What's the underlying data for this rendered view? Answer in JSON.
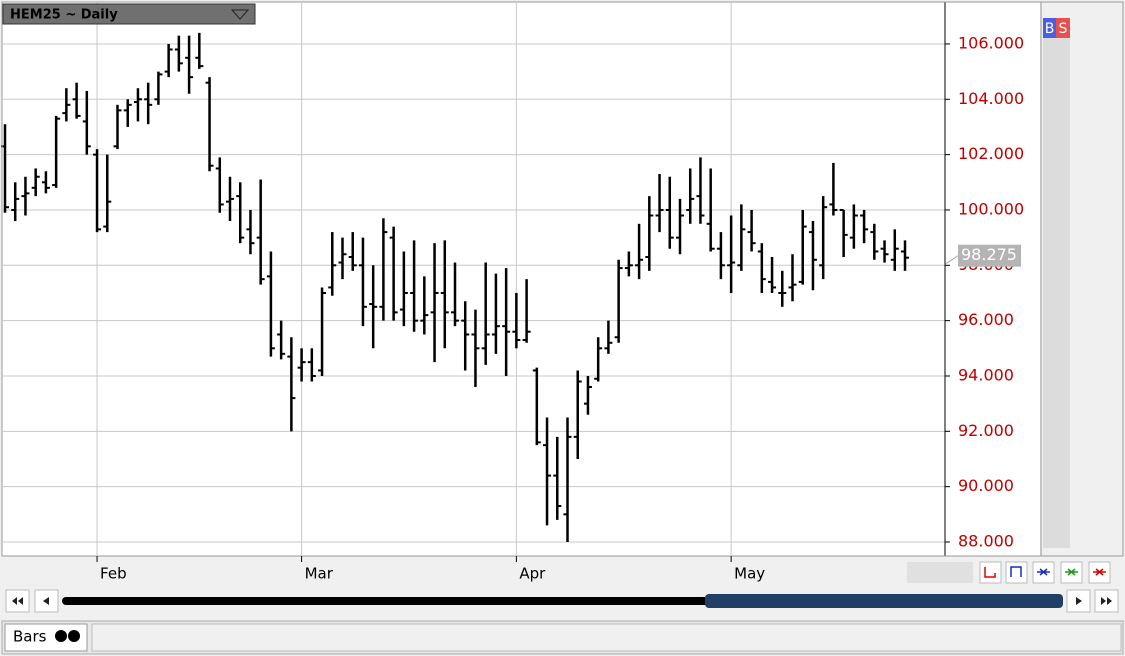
{
  "chart_data": {
    "type": "ohlc",
    "categories": [
      null,
      null,
      null,
      null,
      null,
      null,
      null,
      null,
      null,
      "Feb",
      null,
      null,
      null,
      null,
      null,
      null,
      null,
      null,
      null,
      null,
      null,
      null,
      null,
      null,
      null,
      null,
      null,
      null,
      null,
      "Mar",
      null,
      null,
      null,
      null,
      null,
      null,
      null,
      null,
      null,
      null,
      null,
      null,
      null,
      null,
      null,
      null,
      null,
      null,
      null,
      null,
      "Apr",
      null,
      null,
      null,
      null,
      null,
      null,
      null,
      null,
      null,
      null,
      null,
      null,
      null,
      null,
      null,
      null,
      null,
      null,
      null,
      null,
      "May",
      null,
      null,
      null,
      null,
      null,
      null,
      null,
      null,
      null,
      null,
      null,
      null,
      null,
      null,
      null,
      null,
      null
    ],
    "open": [
      102.3,
      100.0,
      100.5,
      100.8,
      101.0,
      100.9,
      103.5,
      104.0,
      103.2,
      102.0,
      99.4,
      102.3,
      103.6,
      103.9,
      104.0,
      104.0,
      105.0,
      105.8,
      105.5,
      105.5,
      104.6,
      101.5,
      100.3,
      100.5,
      99.3,
      99.0,
      97.6,
      95.5,
      94.7,
      94.3,
      94.5,
      94.2,
      97.2,
      98.1,
      98.3,
      98.0,
      96.6,
      96.5,
      99.0,
      96.4,
      97.0,
      96.0,
      96.3,
      97.0,
      96.3,
      96.0,
      95.5,
      95.0,
      95.5,
      95.8,
      95.6,
      95.3,
      94.2,
      91.5,
      90.4,
      89.0,
      91.8,
      93.0,
      93.9,
      95.0,
      95.4,
      97.9,
      98.0,
      98.3,
      99.8,
      100.0,
      99.0,
      100.0,
      100.5,
      99.5,
      98.6,
      98.0,
      98.0,
      99.2,
      98.5,
      97.4,
      97.0,
      97.2,
      97.4,
      99.2,
      98.0,
      100.2,
      100.0,
      99.0,
      99.8,
      99.2,
      98.6,
      98.2,
      98.5
    ],
    "high": [
      103.1,
      101.0,
      101.2,
      101.5,
      101.4,
      103.4,
      104.4,
      104.6,
      104.3,
      102.2,
      102.0,
      103.8,
      104.0,
      104.4,
      104.6,
      105.0,
      106.0,
      106.3,
      106.3,
      106.4,
      104.8,
      101.9,
      101.2,
      101.0,
      100.0,
      101.1,
      98.5,
      96.0,
      95.4,
      95.0,
      95.0,
      97.2,
      99.2,
      99.0,
      99.2,
      99.0,
      98.0,
      99.7,
      99.4,
      98.5,
      98.9,
      97.6,
      98.8,
      98.9,
      98.1,
      96.7,
      96.4,
      98.1,
      97.7,
      97.9,
      97.0,
      97.5,
      94.3,
      92.5,
      91.8,
      92.5,
      94.2,
      94.0,
      95.4,
      96.0,
      98.2,
      98.5,
      99.5,
      100.5,
      101.3,
      101.2,
      100.4,
      101.5,
      101.9,
      101.5,
      99.2,
      99.8,
      100.2,
      100.0,
      98.8,
      98.3,
      97.8,
      98.4,
      100.0,
      99.6,
      100.5,
      101.7,
      100.0,
      100.2,
      100.0,
      99.5,
      98.9,
      99.3,
      98.9
    ],
    "low": [
      99.9,
      99.6,
      99.8,
      100.5,
      100.6,
      100.8,
      103.2,
      103.3,
      102.0,
      99.2,
      99.2,
      102.2,
      103.0,
      103.2,
      103.1,
      103.8,
      104.8,
      105.0,
      104.2,
      105.1,
      101.4,
      99.9,
      99.6,
      98.8,
      98.4,
      97.3,
      94.7,
      94.6,
      92.0,
      93.8,
      93.8,
      94.0,
      96.9,
      97.5,
      97.8,
      95.8,
      95.0,
      96.0,
      96.0,
      95.8,
      95.6,
      95.5,
      94.5,
      95.0,
      95.8,
      94.2,
      93.6,
      94.4,
      94.8,
      94.0,
      95.0,
      95.2,
      91.5,
      88.6,
      88.8,
      88.0,
      91.0,
      92.6,
      93.8,
      94.8,
      95.2,
      97.6,
      97.5,
      97.8,
      99.2,
      98.6,
      98.4,
      99.5,
      99.5,
      98.5,
      97.5,
      97.0,
      97.8,
      98.5,
      97.0,
      97.0,
      96.5,
      96.7,
      97.3,
      97.1,
      97.5,
      99.8,
      98.3,
      98.6,
      98.8,
      98.2,
      98.1,
      97.8,
      97.8
    ],
    "close": [
      100.1,
      100.4,
      100.6,
      101.2,
      100.8,
      103.3,
      103.8,
      103.4,
      102.3,
      99.3,
      100.3,
      103.6,
      103.8,
      104.0,
      103.8,
      104.9,
      105.8,
      105.3,
      104.8,
      105.2,
      101.6,
      100.2,
      100.4,
      99.0,
      98.8,
      97.5,
      95.0,
      94.8,
      93.2,
      94.5,
      94.0,
      97.0,
      98.0,
      98.4,
      98.0,
      96.5,
      96.5,
      99.2,
      96.3,
      97.0,
      96.0,
      96.2,
      97.0,
      96.3,
      96.0,
      95.5,
      95.0,
      95.5,
      95.8,
      95.6,
      95.3,
      95.6,
      91.6,
      90.4,
      89.3,
      91.8,
      93.8,
      93.6,
      95.0,
      95.2,
      97.9,
      98.0,
      98.2,
      99.8,
      100.0,
      99.0,
      99.8,
      100.4,
      99.8,
      98.6,
      98.0,
      98.1,
      99.3,
      98.8,
      97.5,
      97.2,
      97.0,
      97.3,
      99.4,
      98.2,
      100.1,
      100.0,
      99.1,
      99.8,
      99.3,
      98.5,
      98.4,
      98.6,
      98.275
    ],
    "color": "#000000",
    "ylim": [
      87.53,
      107.48
    ],
    "yticks": [
      {
        "value": 88,
        "label": "88.000"
      },
      {
        "value": 90,
        "label": "90.000"
      },
      {
        "value": 92,
        "label": "92.000"
      },
      {
        "value": 94,
        "label": "94.000"
      },
      {
        "value": 96,
        "label": "96.000"
      },
      {
        "value": 98,
        "label": "98.000"
      },
      {
        "value": 100,
        "label": "100.000"
      },
      {
        "value": 102,
        "label": "102.000"
      },
      {
        "value": 104,
        "label": "104.000"
      },
      {
        "value": 106,
        "label": "106.000"
      }
    ],
    "last_price": 98.275,
    "grid": true
  },
  "ui": {
    "symbol": "HEM25 ~ Daily",
    "buy": "B",
    "sell": "S",
    "tab": "Bars"
  }
}
